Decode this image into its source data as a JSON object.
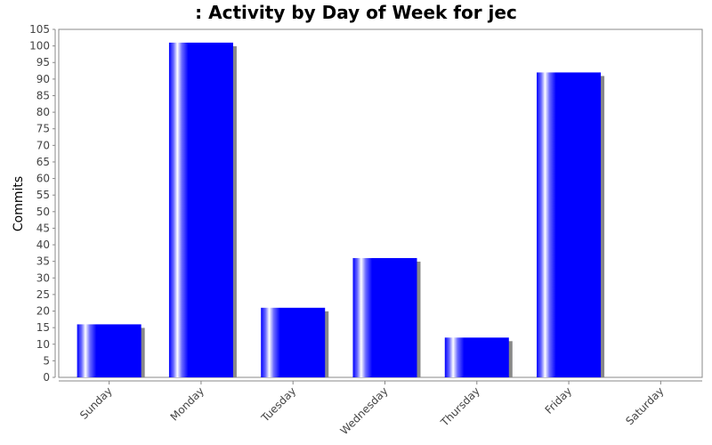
{
  "chart_data": {
    "type": "bar",
    "title": ": Activity by Day of Week for jec",
    "xlabel": "",
    "ylabel": "Commits",
    "categories": [
      "Sunday",
      "Monday",
      "Tuesday",
      "Wednesday",
      "Thursday",
      "Friday",
      "Saturday"
    ],
    "values": [
      16,
      101,
      21,
      36,
      12,
      92,
      0
    ],
    "ylim": [
      0,
      105
    ],
    "ytick_step": 5,
    "grid": false,
    "legend": "none",
    "colors": {
      "bar": "#0000ff",
      "bar_highlight": "#ffffff",
      "shadow": "#888888",
      "axis": "#888888"
    }
  }
}
